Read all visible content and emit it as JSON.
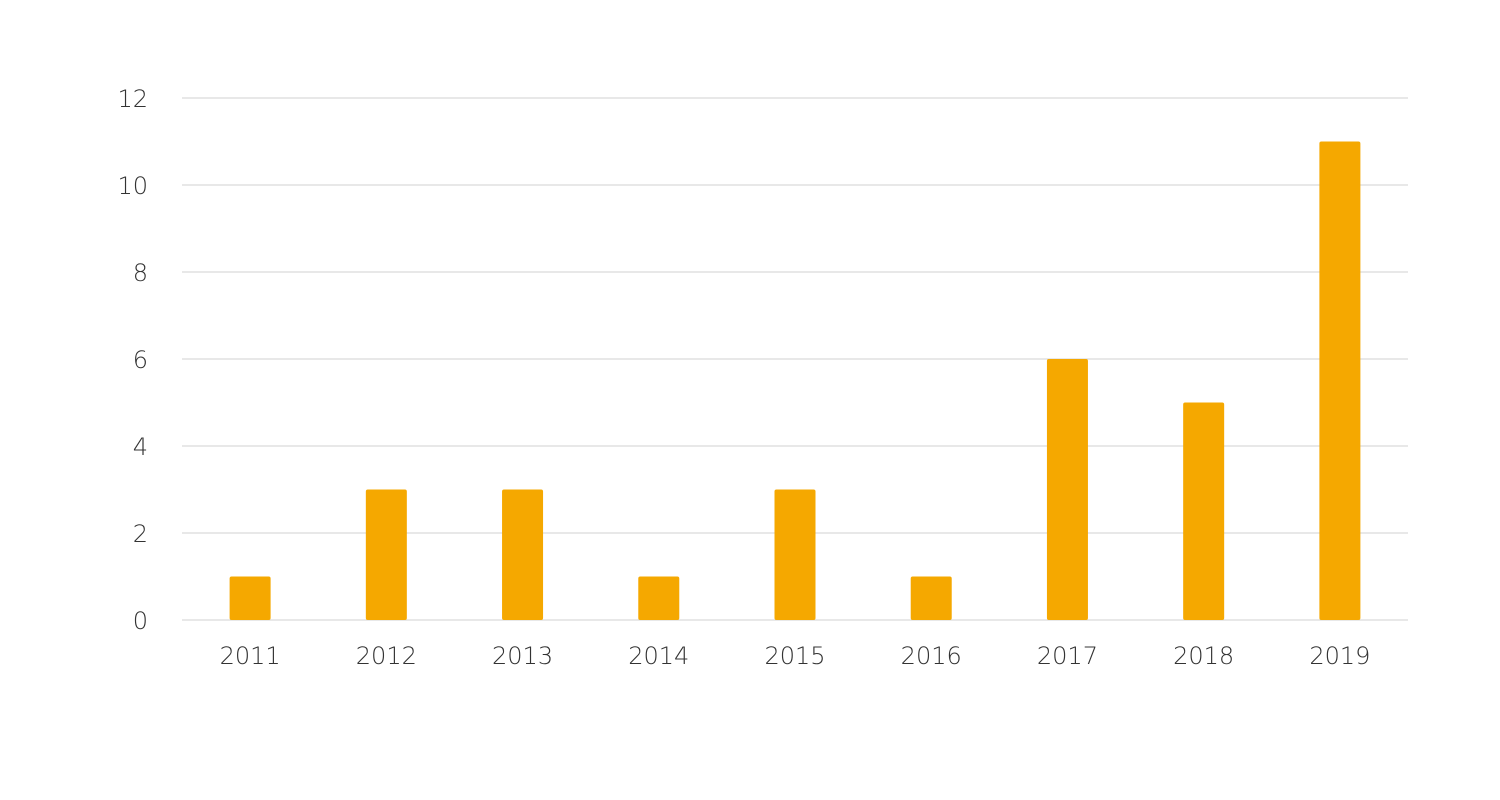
{
  "chart_data": {
    "type": "bar",
    "categories": [
      "2011",
      "2012",
      "2013",
      "2014",
      "2015",
      "2016",
      "2017",
      "2018",
      "2019"
    ],
    "values": [
      1,
      3,
      3,
      1,
      3,
      1,
      6,
      5,
      11
    ],
    "title": "",
    "xlabel": "",
    "ylabel": "",
    "ylim": [
      0,
      12
    ],
    "yticks": [
      0,
      2,
      4,
      6,
      8,
      10,
      12
    ],
    "grid": true,
    "legend": "none",
    "bar_color": "#F5A800"
  }
}
